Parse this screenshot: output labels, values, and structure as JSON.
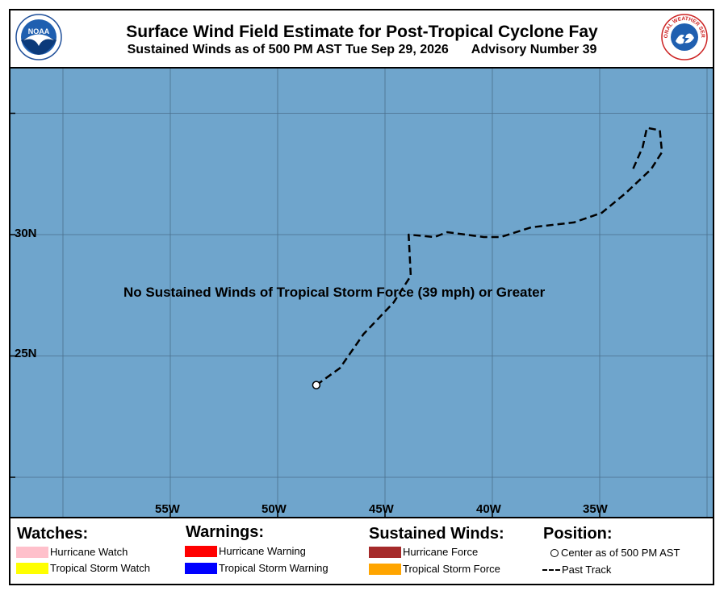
{
  "header": {
    "title": "Surface Wind Field Estimate for Post-Tropical Cyclone Fay",
    "subtitle": "Sustained Winds as of 500 PM AST Tue Sep 29, 2026",
    "advisory": "Advisory Number 39",
    "noaa_logo_text": "NOAA",
    "nws_logo_text": "NATIONAL WEATHER SERVICE"
  },
  "map": {
    "message": "No Sustained Winds of Tropical Storm Force (39 mph) or Greater",
    "ocean_color": "#6fa5cc",
    "lat_labels": [
      "30N",
      "25N"
    ],
    "lon_labels": [
      "55W",
      "50W",
      "45W",
      "40W",
      "35W"
    ],
    "center_position": {
      "lat": 23.8,
      "lon": -48.2
    },
    "past_track": [
      {
        "lat": 23.8,
        "lon": -48.2
      },
      {
        "lat": 24.5,
        "lon": -47.1
      },
      {
        "lat": 25.9,
        "lon": -46.0
      },
      {
        "lat": 27.2,
        "lon": -44.6
      },
      {
        "lat": 28.3,
        "lon": -43.8
      },
      {
        "lat": 30.0,
        "lon": -43.9
      },
      {
        "lat": 29.9,
        "lon": -42.7
      },
      {
        "lat": 30.1,
        "lon": -42.1
      },
      {
        "lat": 29.9,
        "lon": -40.4
      },
      {
        "lat": 29.9,
        "lon": -39.6
      },
      {
        "lat": 30.3,
        "lon": -38.2
      },
      {
        "lat": 30.5,
        "lon": -36.2
      },
      {
        "lat": 30.9,
        "lon": -34.9
      },
      {
        "lat": 31.7,
        "lon": -33.8
      },
      {
        "lat": 32.7,
        "lon": -32.6
      },
      {
        "lat": 33.4,
        "lon": -32.1
      },
      {
        "lat": 34.3,
        "lon": -32.2
      },
      {
        "lat": 34.4,
        "lon": -32.8
      },
      {
        "lat": 33.6,
        "lon": -33.0
      },
      {
        "lat": 32.6,
        "lon": -33.5
      }
    ]
  },
  "legend": {
    "watches_title": "Watches:",
    "warnings_title": "Warnings:",
    "winds_title": "Sustained Winds:",
    "position_title": "Position:",
    "hurricane_watch": {
      "label": "Hurricane Watch",
      "color": "#ffc0cb"
    },
    "ts_watch": {
      "label": "Tropical Storm Watch",
      "color": "#ffff00"
    },
    "hurricane_warning": {
      "label": "Hurricane Warning",
      "color": "#ff0000"
    },
    "ts_warning": {
      "label": "Tropical Storm Warning",
      "color": "#0000ff"
    },
    "hurricane_force": {
      "label": "Hurricane Force",
      "color": "#a52a2a"
    },
    "ts_force": {
      "label": "Tropical Storm Force",
      "color": "#ffa500"
    },
    "center_label": "Center as of 500 PM AST",
    "track_label": "Past Track"
  }
}
